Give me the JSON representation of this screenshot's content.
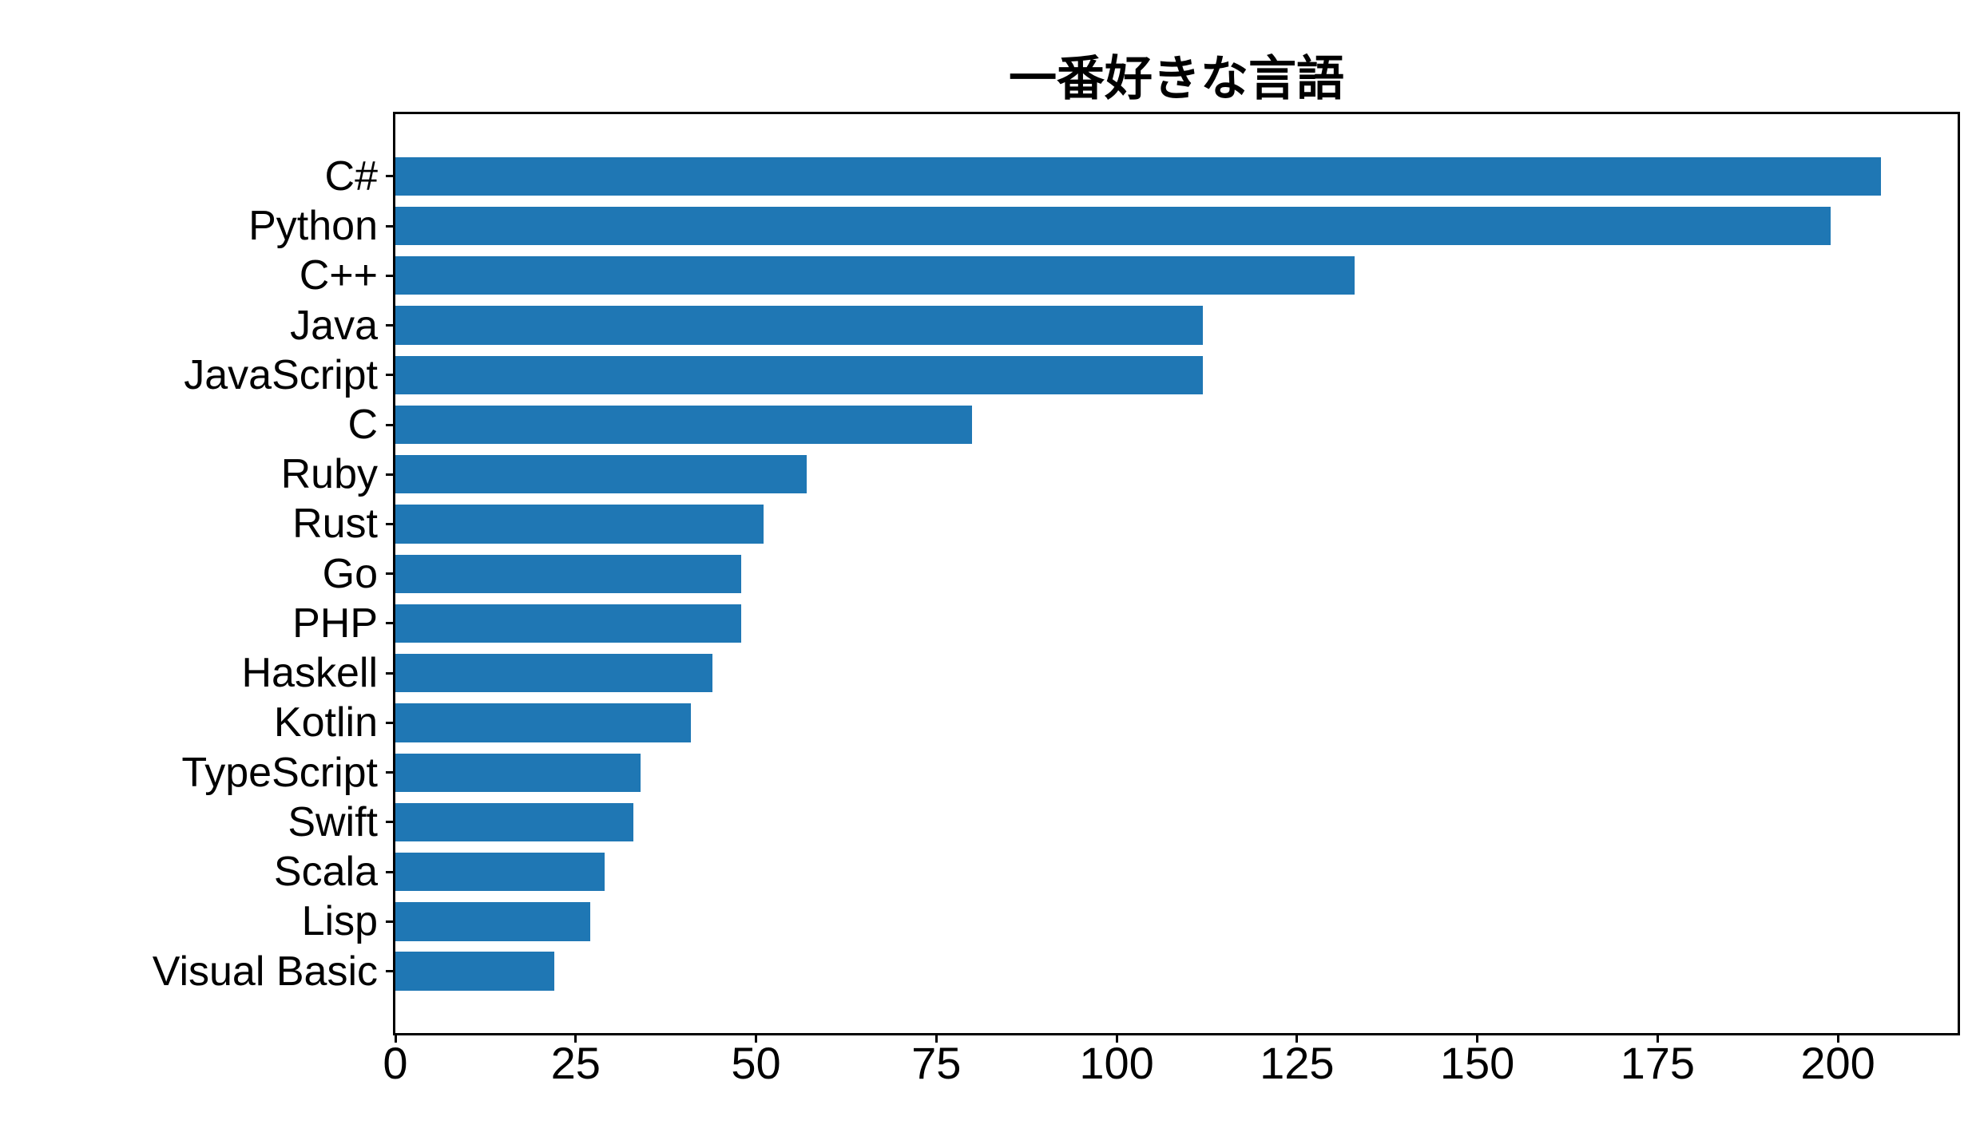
{
  "chart_data": {
    "type": "bar",
    "orientation": "horizontal",
    "title": "一番好きな言語",
    "categories": [
      "C#",
      "Python",
      "C++",
      "Java",
      "JavaScript",
      "C",
      "Ruby",
      "Rust",
      "Go",
      "PHP",
      "Haskell",
      "Kotlin",
      "TypeScript",
      "Swift",
      "Scala",
      "Lisp",
      "Visual Basic"
    ],
    "values": [
      206,
      199,
      133,
      112,
      112,
      80,
      57,
      51,
      48,
      48,
      44,
      41,
      34,
      33,
      29,
      27,
      22
    ],
    "x_ticks": [
      0,
      25,
      50,
      75,
      100,
      125,
      150,
      175,
      200
    ],
    "xlim": [
      0,
      216.6
    ],
    "xlabel": "",
    "ylabel": "",
    "grid": false,
    "legend": false,
    "bar_color": "#1f77b4",
    "background_color": "#ffffff",
    "spine_color": "#000000",
    "text_color": "#000000"
  }
}
